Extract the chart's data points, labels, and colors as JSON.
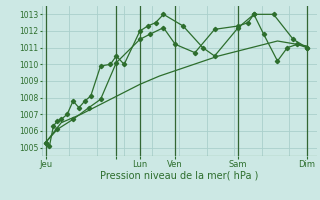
{
  "bg_color": "#cce8e4",
  "grid_color": "#aad0cc",
  "line_color": "#2d6e2d",
  "vline_color": "#336633",
  "title": "Pression niveau de la mer( hPa )",
  "ylim": [
    1004.5,
    1013.5
  ],
  "yticks": [
    1005,
    1006,
    1007,
    1008,
    1009,
    1010,
    1011,
    1012,
    1013
  ],
  "xmax": 140,
  "xlabels_pos": [
    2,
    38,
    50,
    68,
    100,
    135
  ],
  "xlabels_names": [
    "Jeu",
    "",
    "Lun",
    "Ven",
    "Sam",
    "Dim"
  ],
  "vlines_x": [
    2,
    38,
    50,
    68,
    100,
    135
  ],
  "series1_x": [
    2,
    4,
    6,
    8,
    10,
    13,
    16,
    19,
    22,
    25,
    30,
    35,
    38,
    42,
    50,
    54,
    58,
    62,
    72,
    82,
    88,
    100,
    108,
    118,
    128,
    135
  ],
  "series1_y": [
    1005.3,
    1005.1,
    1006.3,
    1006.6,
    1006.7,
    1007.0,
    1007.8,
    1007.4,
    1007.8,
    1008.1,
    1009.9,
    1010.0,
    1010.5,
    1010.0,
    1012.0,
    1012.3,
    1012.5,
    1013.0,
    1012.3,
    1011.0,
    1010.5,
    1012.2,
    1013.0,
    1013.0,
    1011.5,
    1011.0
  ],
  "series2_x": [
    2,
    10,
    20,
    30,
    40,
    50,
    60,
    70,
    80,
    90,
    100,
    110,
    120,
    130,
    135
  ],
  "series2_y": [
    1005.3,
    1006.5,
    1007.0,
    1007.6,
    1008.2,
    1008.8,
    1009.3,
    1009.7,
    1010.1,
    1010.5,
    1010.8,
    1011.1,
    1011.4,
    1011.2,
    1011.1
  ],
  "series3_x": [
    2,
    8,
    16,
    24,
    30,
    38,
    50,
    55,
    62,
    68,
    78,
    88,
    100,
    105,
    108,
    113,
    120,
    125,
    130,
    135
  ],
  "series3_y": [
    1005.3,
    1006.1,
    1006.7,
    1007.4,
    1007.9,
    1010.1,
    1011.5,
    1011.8,
    1012.2,
    1011.2,
    1010.7,
    1012.1,
    1012.3,
    1012.5,
    1013.0,
    1011.8,
    1010.2,
    1011.0,
    1011.2,
    1011.0
  ]
}
